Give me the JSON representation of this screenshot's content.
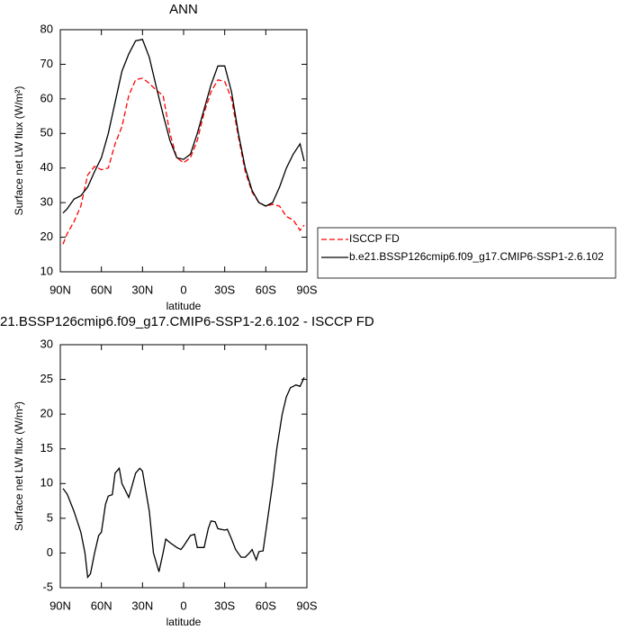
{
  "chart_data": [
    {
      "type": "line",
      "title": "ANN",
      "xlabel": "latitude",
      "ylabel": "Surface net LW flux (W/m²)",
      "xlim": [
        90,
        -90
      ],
      "xticks": [
        {
          "value": 90,
          "label": "90N"
        },
        {
          "value": 60,
          "label": "60N"
        },
        {
          "value": 30,
          "label": "30N"
        },
        0,
        {
          "value": -30,
          "label": "30S"
        },
        {
          "value": -60,
          "label": "60S"
        },
        {
          "value": -90,
          "label": "90S"
        }
      ],
      "ylim": [
        10,
        80
      ],
      "yticks": [
        10,
        20,
        30,
        40,
        50,
        60,
        70,
        80
      ],
      "legend": "outside-right",
      "x": [
        88,
        85,
        80,
        75,
        70,
        65,
        60,
        55,
        50,
        45,
        40,
        35,
        30,
        25,
        20,
        15,
        10,
        5,
        0,
        -5,
        -10,
        -15,
        -20,
        -25,
        -30,
        -35,
        -40,
        -45,
        -50,
        -55,
        -60,
        -65,
        -70,
        -75,
        -80,
        -85,
        -88
      ],
      "series": [
        {
          "name": "ISCCP FD",
          "color": "#ff0000",
          "style": "dashed",
          "values": [
            18,
            21,
            24.5,
            29,
            38,
            40.5,
            39.5,
            40,
            47,
            52,
            61,
            65.5,
            66,
            64.5,
            62.5,
            61,
            50,
            43,
            41.5,
            43,
            48,
            56,
            62,
            65.5,
            65,
            60,
            49,
            39,
            33,
            30,
            29,
            29.5,
            29,
            26,
            25,
            22,
            23.5
          ]
        },
        {
          "name": "b.e21.BSSP126cmip6.f09_g17.CMIP6-SSP1-2.6.102",
          "color": "#000000",
          "style": "solid",
          "values": [
            27,
            28.2,
            31,
            32,
            34.5,
            39,
            43,
            50,
            59,
            68,
            73,
            76.8,
            77.2,
            72,
            63.5,
            55.5,
            48,
            43,
            42.5,
            44,
            50,
            57,
            64,
            69.5,
            69.5,
            62,
            50,
            40,
            33.5,
            30,
            29,
            30,
            34.5,
            40,
            44,
            47,
            42
          ]
        }
      ]
    },
    {
      "type": "line",
      "title": "21.BSSP126cmip6.f09_g17.CMIP6-SSP1-2.6.102 - ISCCP FD",
      "xlabel": "latitude",
      "ylabel": "Surface net LW flux (W/m²)",
      "xlim": [
        90,
        -90
      ],
      "xticks": [
        {
          "value": 90,
          "label": "90N"
        },
        {
          "value": 60,
          "label": "60N"
        },
        {
          "value": 30,
          "label": "30N"
        },
        0,
        {
          "value": -30,
          "label": "30S"
        },
        {
          "value": -60,
          "label": "60S"
        },
        {
          "value": -90,
          "label": "90S"
        }
      ],
      "ylim": [
        -5,
        30
      ],
      "yticks": [
        -5,
        0,
        5,
        10,
        15,
        20,
        25,
        30
      ],
      "x": [
        88,
        85,
        80,
        75,
        72,
        70,
        68,
        65,
        62,
        60,
        57,
        55,
        52,
        50,
        47,
        45,
        40,
        35,
        32,
        30,
        25,
        22,
        18,
        15,
        13,
        10,
        5,
        2,
        0,
        -5,
        -8,
        -10,
        -15,
        -18,
        -20,
        -23,
        -25,
        -30,
        -32,
        -35,
        -38,
        -42,
        -45,
        -48,
        -50,
        -53,
        -55,
        -58,
        -60,
        -65,
        -68,
        -72,
        -75,
        -78,
        -80,
        -82,
        -85,
        -88
      ],
      "series": [
        {
          "color": "#000000",
          "style": "solid",
          "values": [
            9.3,
            8.5,
            6,
            3,
            0,
            -3.5,
            -3,
            0,
            2.5,
            3,
            7,
            8.2,
            8.4,
            11.5,
            12.2,
            10,
            8,
            11.5,
            12.2,
            11.8,
            6,
            0,
            -2.7,
            0,
            2,
            1.5,
            0.8,
            0.5,
            1,
            2.5,
            2.7,
            0.8,
            0.8,
            3.5,
            4.6,
            4.5,
            3.5,
            3.3,
            3.4,
            2,
            0.5,
            -0.6,
            -0.6,
            0,
            0.5,
            -1,
            0.2,
            0.3,
            3,
            10,
            15,
            20,
            22.5,
            23.8,
            24,
            24.2,
            24,
            25.3
          ]
        }
      ]
    }
  ]
}
